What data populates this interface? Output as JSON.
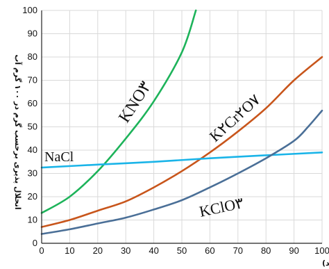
{
  "chart_data": {
    "type": "line",
    "xlabel": "دما (درجه سانتی گراد)",
    "ylabel": "انحلال پذیری برحسب گرم در ۱۰۰ گرم آب",
    "xlim": [
      0,
      100
    ],
    "ylim": [
      0,
      100
    ],
    "x_ticks": [
      0,
      10,
      20,
      30,
      40,
      50,
      60,
      70,
      80,
      90,
      100
    ],
    "y_ticks": [
      0,
      10,
      20,
      30,
      40,
      50,
      60,
      70,
      80,
      90,
      100
    ],
    "grid": true,
    "series": [
      {
        "name": "KNO۳",
        "color": "#1db35a",
        "points": [
          [
            0,
            13
          ],
          [
            10,
            20
          ],
          [
            20,
            31
          ],
          [
            30,
            45
          ],
          [
            40,
            61
          ],
          [
            50,
            82
          ],
          [
            55,
            100
          ]
        ]
      },
      {
        "name": "K۲Cr۲O۷",
        "color": "#c8551b",
        "points": [
          [
            0,
            7
          ],
          [
            10,
            10
          ],
          [
            20,
            14
          ],
          [
            30,
            18
          ],
          [
            40,
            24
          ],
          [
            50,
            31
          ],
          [
            60,
            39
          ],
          [
            70,
            48
          ],
          [
            80,
            58
          ],
          [
            90,
            70
          ],
          [
            100,
            80
          ]
        ]
      },
      {
        "name": "NaCl",
        "color": "#1ab4e8",
        "points": [
          [
            0,
            32.5
          ],
          [
            20,
            33.8
          ],
          [
            40,
            35
          ],
          [
            60,
            36.5
          ],
          [
            80,
            37.8
          ],
          [
            100,
            39
          ]
        ]
      },
      {
        "name": "KClO۳",
        "color": "#4a6f97",
        "points": [
          [
            0,
            4
          ],
          [
            10,
            6
          ],
          [
            20,
            8.5
          ],
          [
            30,
            11
          ],
          [
            40,
            14.5
          ],
          [
            50,
            18.5
          ],
          [
            60,
            24
          ],
          [
            70,
            30
          ],
          [
            80,
            36.5
          ],
          [
            90,
            44
          ],
          [
            95,
            50
          ],
          [
            100,
            57
          ]
        ]
      }
    ]
  }
}
